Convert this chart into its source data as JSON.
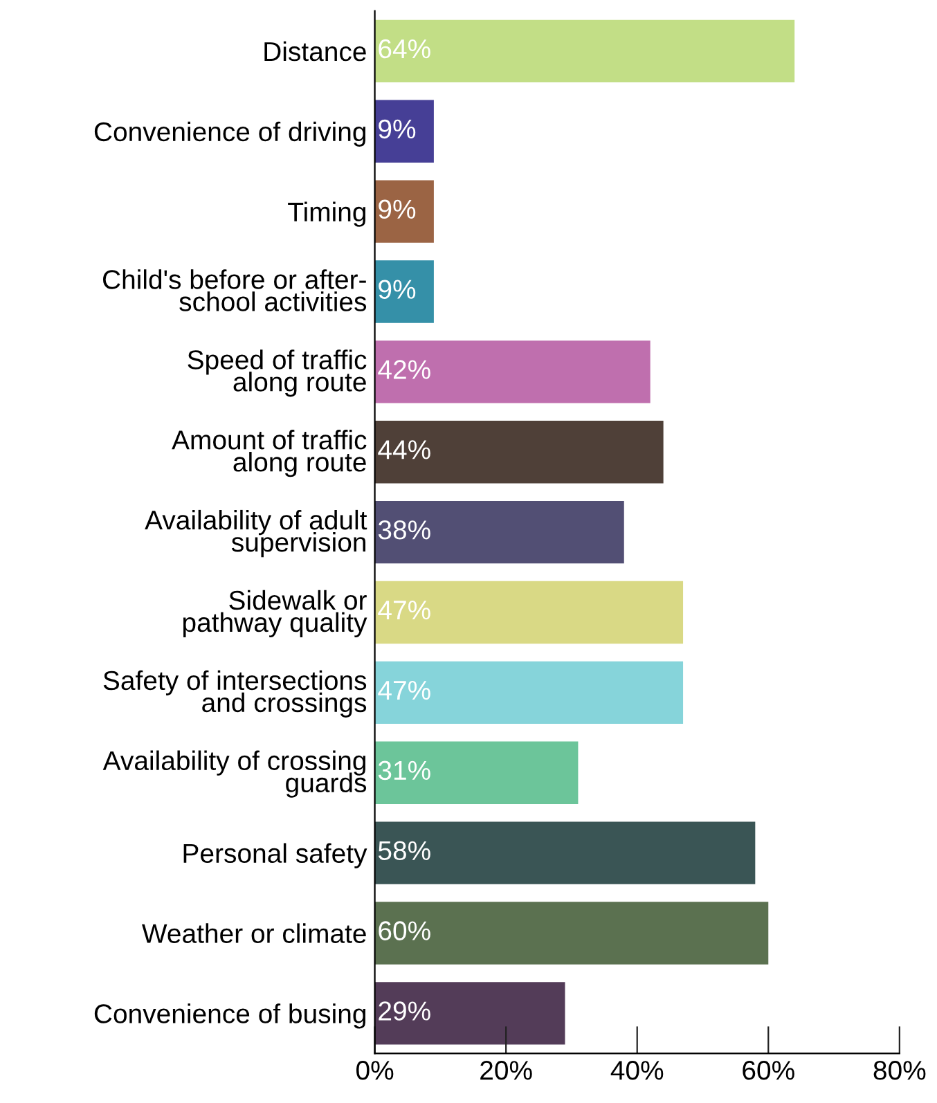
{
  "chart_data": {
    "type": "bar",
    "orientation": "horizontal",
    "categories": [
      "Distance",
      "Convenience of driving",
      "Timing",
      "Child's before or after-\nschool activities",
      "Speed of traffic\nalong route",
      "Amount of traffic\nalong route",
      "Availability of adult\nsupervision",
      "Sidewalk or\npathway quality",
      "Safety of intersections\nand crossings",
      "Availability of crossing\nguards",
      "Personal safety",
      "Weather or climate",
      "Convenience of busing"
    ],
    "values": [
      64,
      9,
      9,
      9,
      42,
      44,
      38,
      47,
      47,
      31,
      58,
      60,
      29
    ],
    "value_labels": [
      "64%",
      "9%",
      "9%",
      "9%",
      "42%",
      "44%",
      "38%",
      "47%",
      "47%",
      "31%",
      "58%",
      "60%",
      "29%"
    ],
    "colors": [
      "#c2de86",
      "#463f96",
      "#9b6444",
      "#3590a8",
      "#bf6fae",
      "#4f4038",
      "#524f74",
      "#d9d985",
      "#86d4da",
      "#6cc59a",
      "#3a5555",
      "#5b7150",
      "#533c58"
    ],
    "xlim": [
      0,
      80
    ],
    "xticks": [
      {
        "value": 0,
        "label": "0%"
      },
      {
        "value": 20,
        "label": "20%"
      },
      {
        "value": 40,
        "label": "40%"
      },
      {
        "value": 60,
        "label": "60%"
      },
      {
        "value": 80,
        "label": "80%"
      }
    ],
    "grid": false
  }
}
